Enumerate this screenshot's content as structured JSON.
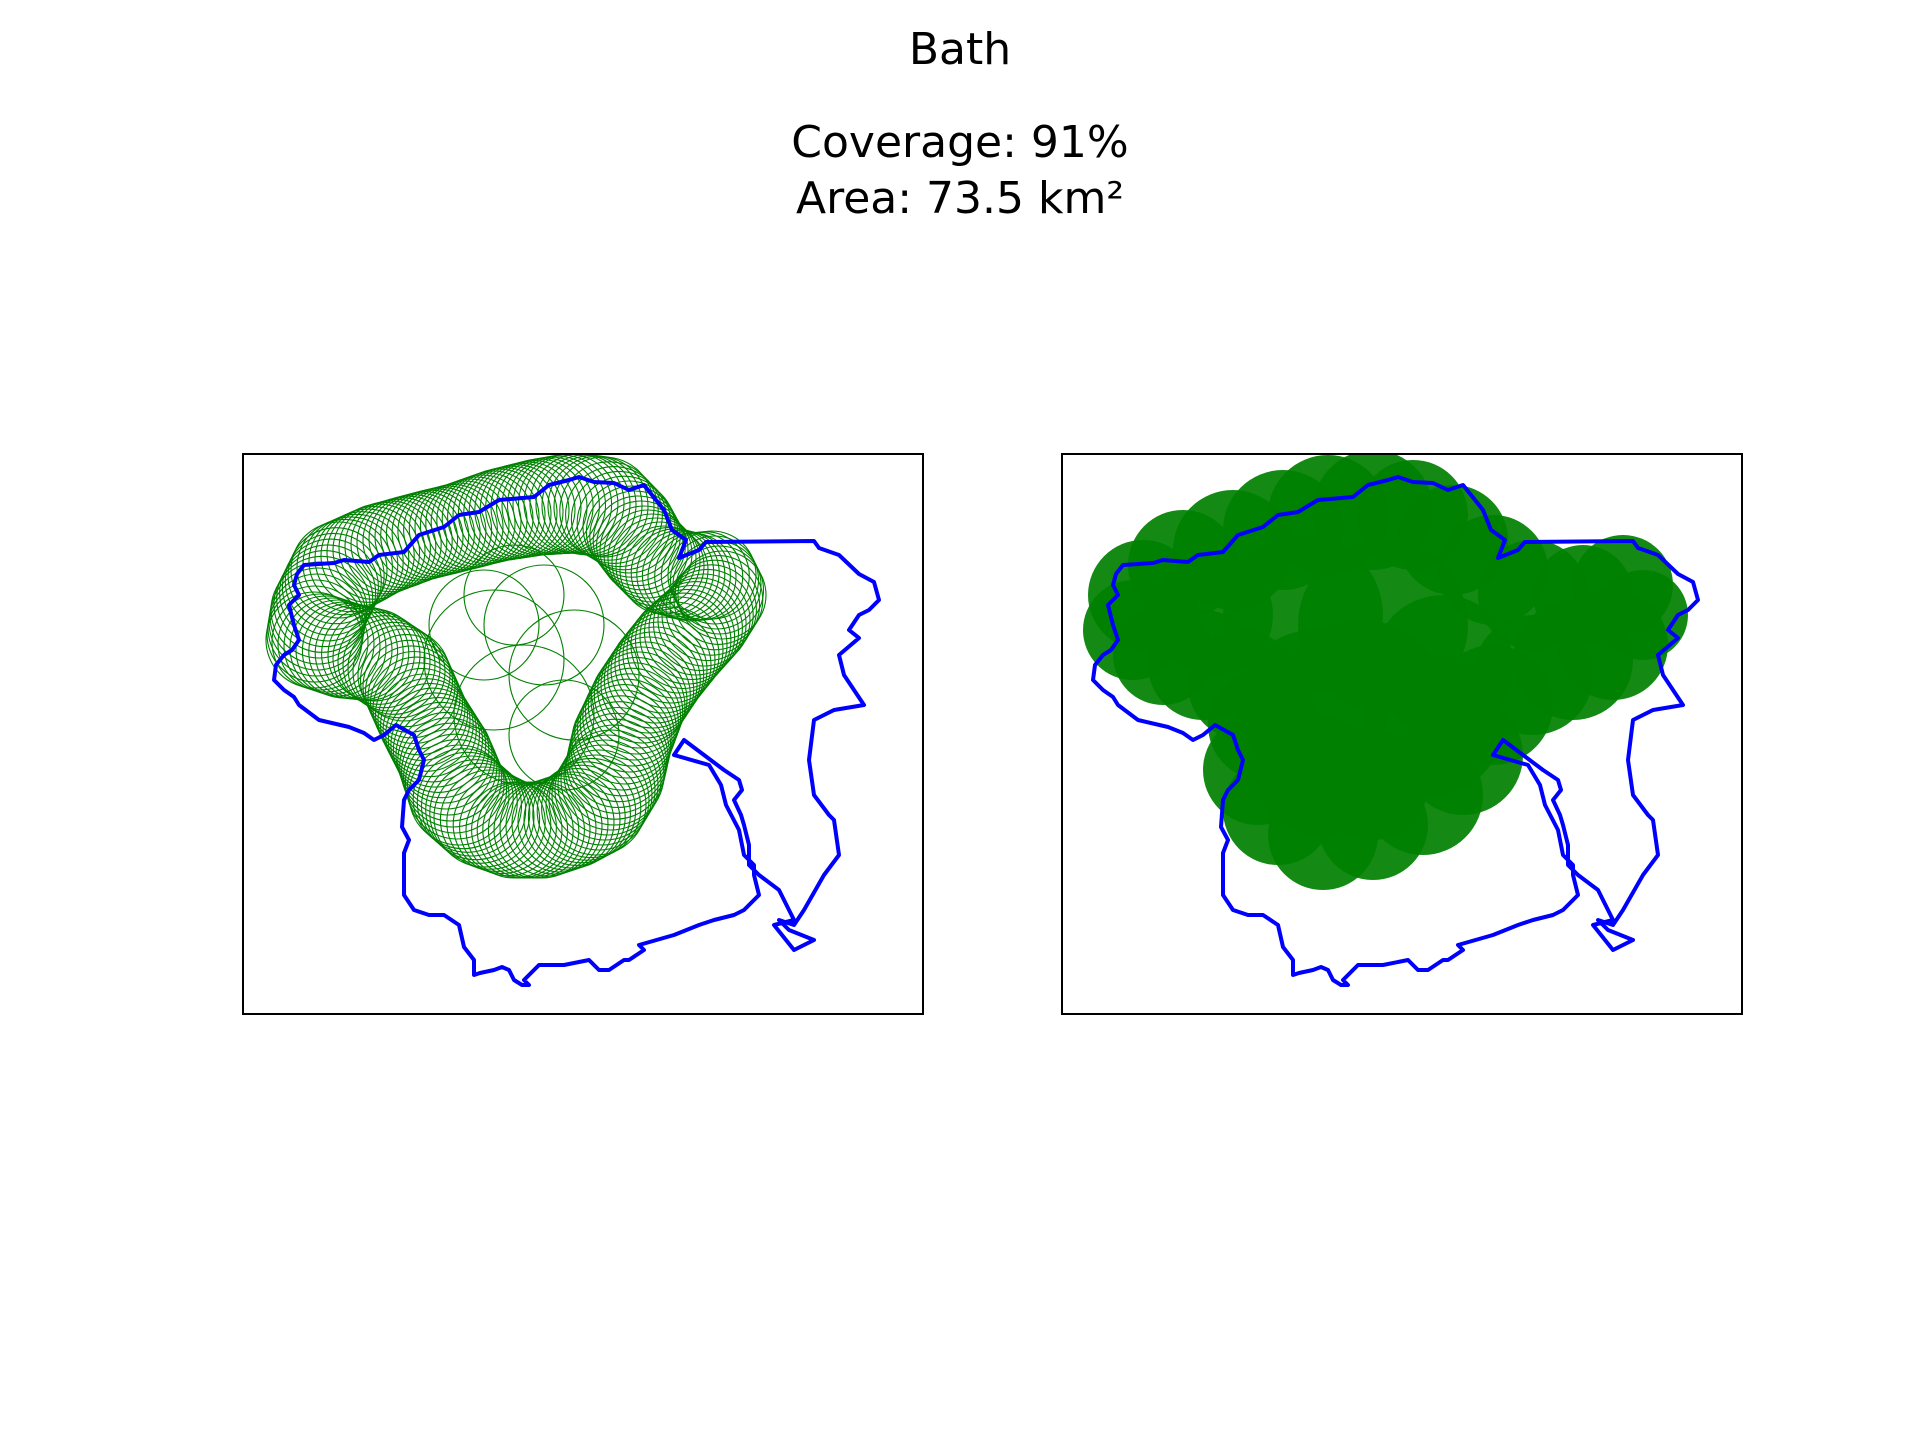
{
  "title": "Bath",
  "coverage_text": "Coverage: 91%",
  "area_text": "Area: 73.5 km²",
  "colors": {
    "boundary": "#0000ff",
    "coverage": "#008000",
    "frame": "#000000",
    "background": "#ffffff"
  },
  "panels": [
    {
      "name": "circle-outlines-panel",
      "style": "outline"
    },
    {
      "name": "filled-coverage-panel",
      "style": "filled"
    }
  ]
}
